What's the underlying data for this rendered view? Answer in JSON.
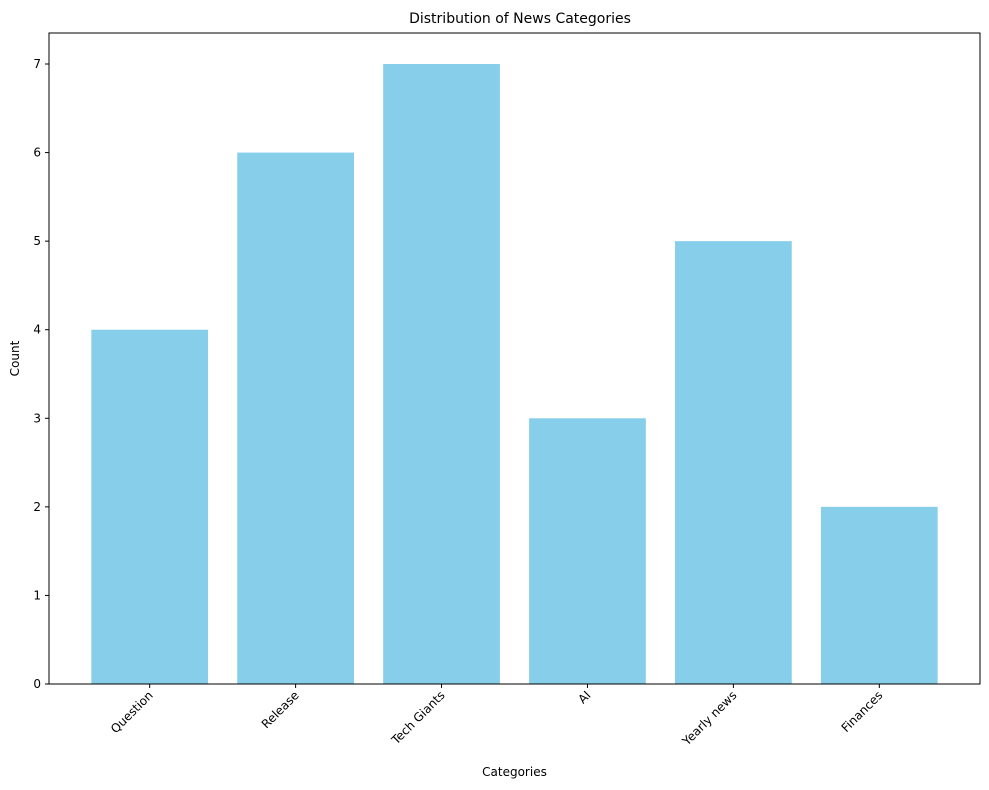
{
  "chart_data": {
    "type": "bar",
    "title": "Distribution of News Categories",
    "xlabel": "Categories",
    "ylabel": "Count",
    "categories": [
      "Question",
      "Release",
      "Tech Giants",
      "AI",
      "Yearly news",
      "Finances"
    ],
    "values": [
      4,
      6,
      7,
      3,
      5,
      2
    ],
    "yticks": [
      "0",
      "1",
      "2",
      "3",
      "4",
      "5",
      "6",
      "7"
    ],
    "ylim": [
      0,
      7.35
    ],
    "grid": false,
    "legend": "none",
    "bar_color": "#87CEEB",
    "axis_color": "#000000"
  }
}
